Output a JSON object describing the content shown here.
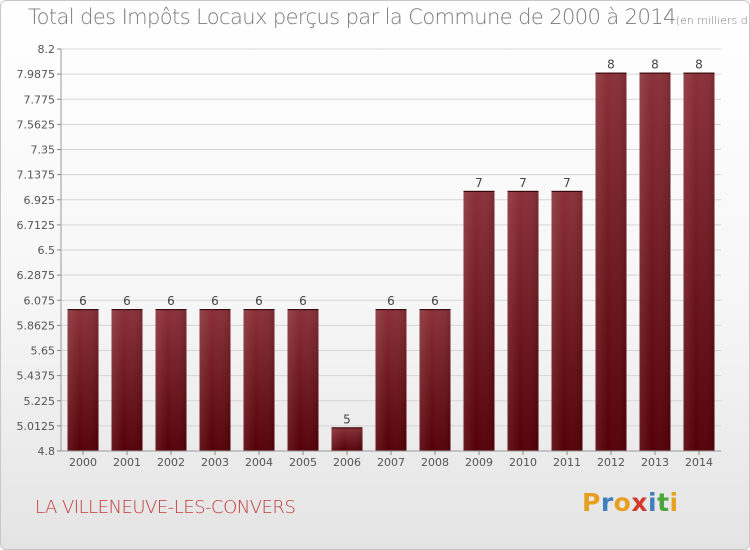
{
  "chart_data": {
    "type": "bar",
    "title": "Total des Impôts Locaux perçus par la Commune de 2000 à 2014",
    "subtitle": "(en milliers d'€)",
    "categories": [
      "2000",
      "2001",
      "2002",
      "2003",
      "2004",
      "2005",
      "2006",
      "2007",
      "2008",
      "2009",
      "2010",
      "2011",
      "2012",
      "2013",
      "2014"
    ],
    "values": [
      6,
      6,
      6,
      6,
      6,
      6,
      5,
      6,
      6,
      7,
      7,
      7,
      8,
      8,
      8
    ],
    "ylim": [
      4.8,
      8.2
    ],
    "yticks": [
      "4.8",
      "5.0125",
      "5.225",
      "5.4375",
      "5.65",
      "5.8625",
      "6.075",
      "6.2875",
      "6.5",
      "6.7125",
      "6.925",
      "7.1375",
      "7.35",
      "7.5625",
      "7.775",
      "7.9875",
      "8.2"
    ],
    "grid": true,
    "bar_color": "#6b0d12"
  },
  "commune": "LA VILLENEUVE-LES-CONVERS",
  "logo": {
    "chars": [
      "P",
      "r",
      "o",
      "x",
      "i",
      "t",
      "i"
    ],
    "colors": [
      "#e8a020",
      "#3f7fc0",
      "#e8a020",
      "#d23a2c",
      "#3f7fc0",
      "#4aa83a",
      "#e8a020"
    ]
  }
}
